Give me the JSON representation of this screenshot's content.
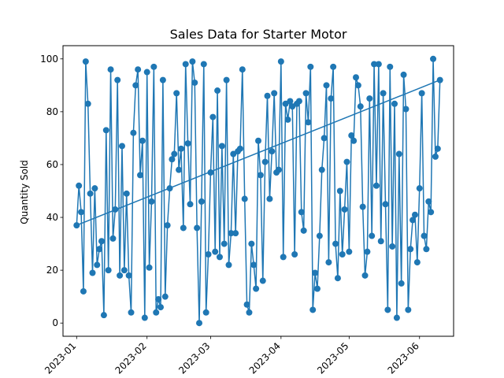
{
  "chart_data": {
    "type": "line",
    "title": "Sales Data for Starter Motor",
    "xlabel": "",
    "ylabel": "Quantity Sold",
    "x_start": "2023-01-01",
    "x_end": "2023-06-10",
    "xlim": [
      "2022-12-26",
      "2023-06-16"
    ],
    "ylim": [
      -5,
      105
    ],
    "x_ticks": [
      {
        "date": "2023-01-01",
        "label": "2023-01"
      },
      {
        "date": "2023-02-01",
        "label": "2023-02"
      },
      {
        "date": "2023-03-01",
        "label": "2023-03"
      },
      {
        "date": "2023-04-01",
        "label": "2023-04"
      },
      {
        "date": "2023-05-01",
        "label": "2023-05"
      },
      {
        "date": "2023-06-01",
        "label": "2023-06"
      }
    ],
    "y_ticks": [
      0,
      20,
      40,
      60,
      80,
      100
    ],
    "grid": false,
    "legend": false,
    "series": [
      {
        "color": "#1f77b4",
        "marker": "circle",
        "values": [
          37,
          52,
          42,
          12,
          99,
          83,
          49,
          19,
          51,
          22,
          28,
          31,
          3,
          73,
          20,
          96,
          32,
          43,
          92,
          18,
          67,
          20,
          49,
          18,
          4,
          72,
          90,
          96,
          56,
          69,
          2,
          95,
          21,
          46,
          97,
          4,
          9,
          6,
          92,
          10,
          37,
          51,
          62,
          64,
          87,
          58,
          66,
          36,
          98,
          68,
          45,
          99,
          91,
          36,
          0,
          46,
          98,
          4,
          26,
          57,
          78,
          27,
          88,
          25,
          67,
          30,
          92,
          22,
          34,
          64,
          34,
          65,
          66,
          96,
          47,
          7,
          4,
          30,
          22,
          13,
          69,
          56,
          16,
          61,
          86,
          47,
          65,
          87,
          57,
          58,
          99,
          25,
          83,
          77,
          84,
          82,
          26,
          83,
          84,
          42,
          35,
          87,
          76,
          97,
          5,
          19,
          13,
          33,
          58,
          70,
          90,
          23,
          85,
          97,
          30,
          17,
          50,
          26,
          43,
          61,
          27,
          71,
          69,
          93,
          90,
          82,
          44,
          18,
          27,
          85,
          33,
          98,
          52,
          98,
          31,
          87,
          45,
          5,
          97,
          29,
          83,
          2,
          64,
          15,
          94,
          81,
          5,
          28,
          39,
          41,
          23,
          51,
          87,
          33,
          28,
          46,
          42,
          100,
          63,
          66,
          92
        ]
      },
      {
        "color": "#1f77b4",
        "marker": "none",
        "trend_start": 37,
        "trend_end": 92
      }
    ]
  }
}
